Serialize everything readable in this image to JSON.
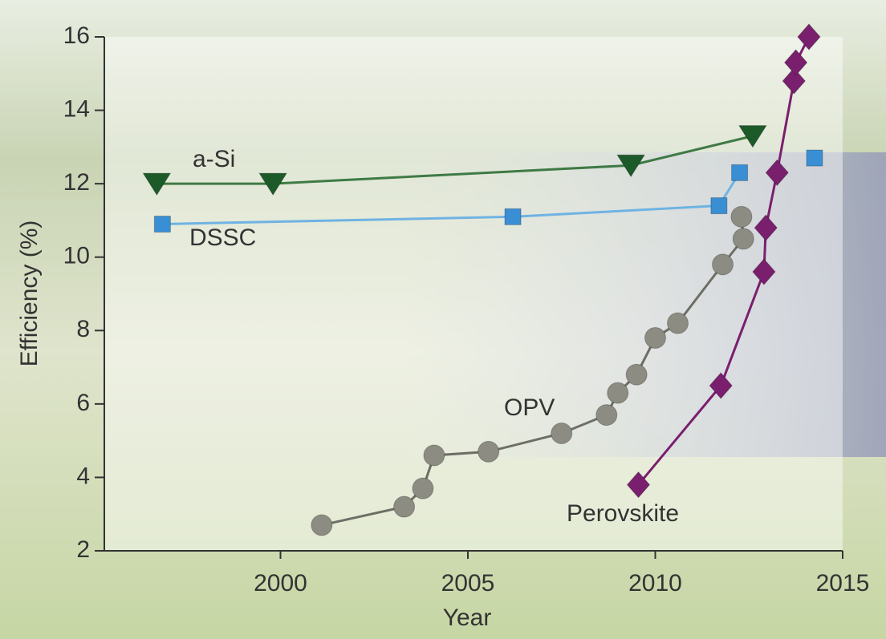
{
  "chart_data": {
    "type": "line",
    "xlabel": "Year",
    "ylabel": "Efficiency (%)",
    "xlim": [
      1995.3,
      2015
    ],
    "ylim": [
      2,
      16
    ],
    "xticks": [
      2000,
      2005,
      2010,
      2015
    ],
    "yticks": [
      2,
      4,
      6,
      8,
      10,
      12,
      14,
      16
    ],
    "series": [
      {
        "name": "a-Si",
        "color": "#1d5a29",
        "line_color": "#3f7a45",
        "marker": "triangle-down",
        "x": [
          1996.7,
          1999.8,
          2009.35,
          2012.6
        ],
        "values": [
          12.0,
          12.0,
          12.5,
          13.3
        ]
      },
      {
        "name": "DSSC",
        "color": "#3a8fd4",
        "line_color": "#6fb3e3",
        "marker": "square",
        "x": [
          1996.85,
          2006.2,
          2011.7,
          2012.25,
          2014.25
        ],
        "values": [
          10.9,
          11.1,
          11.4,
          12.3,
          null
        ]
      },
      {
        "name": "OPV",
        "color": "#8c8c82",
        "line_color": "#6e6e66",
        "marker": "circle",
        "x": [
          2001.1,
          2003.3,
          2003.8,
          2004.1,
          2005.55,
          2007.5,
          2008.7,
          2009.0,
          2009.5,
          2010.0,
          2010.6,
          2011.8,
          2012.35,
          2012.3
        ],
        "values": [
          2.7,
          3.2,
          3.7,
          4.6,
          4.7,
          5.2,
          5.7,
          6.3,
          6.8,
          7.8,
          8.2,
          9.8,
          10.5,
          11.1
        ]
      },
      {
        "name": "Perovskite",
        "color": "#7a1f6e",
        "line_color": "#7a1f6e",
        "marker": "diamond",
        "x": [
          2009.55,
          2011.75,
          2012.9,
          2012.95,
          2013.25,
          2013.7,
          2013.75,
          2014.1
        ],
        "values": [
          3.8,
          6.5,
          9.6,
          10.8,
          12.3,
          14.8,
          15.3,
          16.0
        ]
      }
    ],
    "extra_points": [
      {
        "series": 1,
        "x": 2014.25,
        "value": 12.7
      }
    ]
  }
}
